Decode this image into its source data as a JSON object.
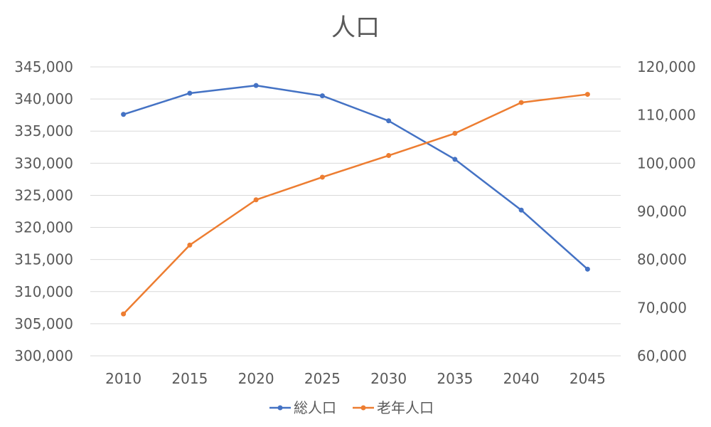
{
  "chart_data": {
    "type": "line",
    "title": "人口",
    "categories": [
      "2010",
      "2015",
      "2020",
      "2025",
      "2030",
      "2035",
      "2040",
      "2045"
    ],
    "series": [
      {
        "name": "総人口",
        "axis": "left",
        "color": "#4472c4",
        "values": [
          337600,
          340900,
          342100,
          340500,
          336600,
          330600,
          322700,
          313500
        ]
      },
      {
        "name": "老年人口",
        "axis": "right",
        "color": "#ed7d31",
        "values": [
          68700,
          83000,
          92400,
          97100,
          101600,
          106200,
          112600,
          114300
        ]
      }
    ],
    "y_left": {
      "min": 300000,
      "max": 345000,
      "step": 5000,
      "tick_labels": [
        "300,000",
        "305,000",
        "310,000",
        "315,000",
        "320,000",
        "325,000",
        "330,000",
        "335,000",
        "340,000",
        "345,000"
      ]
    },
    "y_right": {
      "min": 60000,
      "max": 120000,
      "step": 10000,
      "tick_labels": [
        "60,000",
        "70,000",
        "80,000",
        "90,000",
        "100,000",
        "110,000",
        "120,000"
      ]
    },
    "grid": true,
    "legend_position": "bottom"
  }
}
